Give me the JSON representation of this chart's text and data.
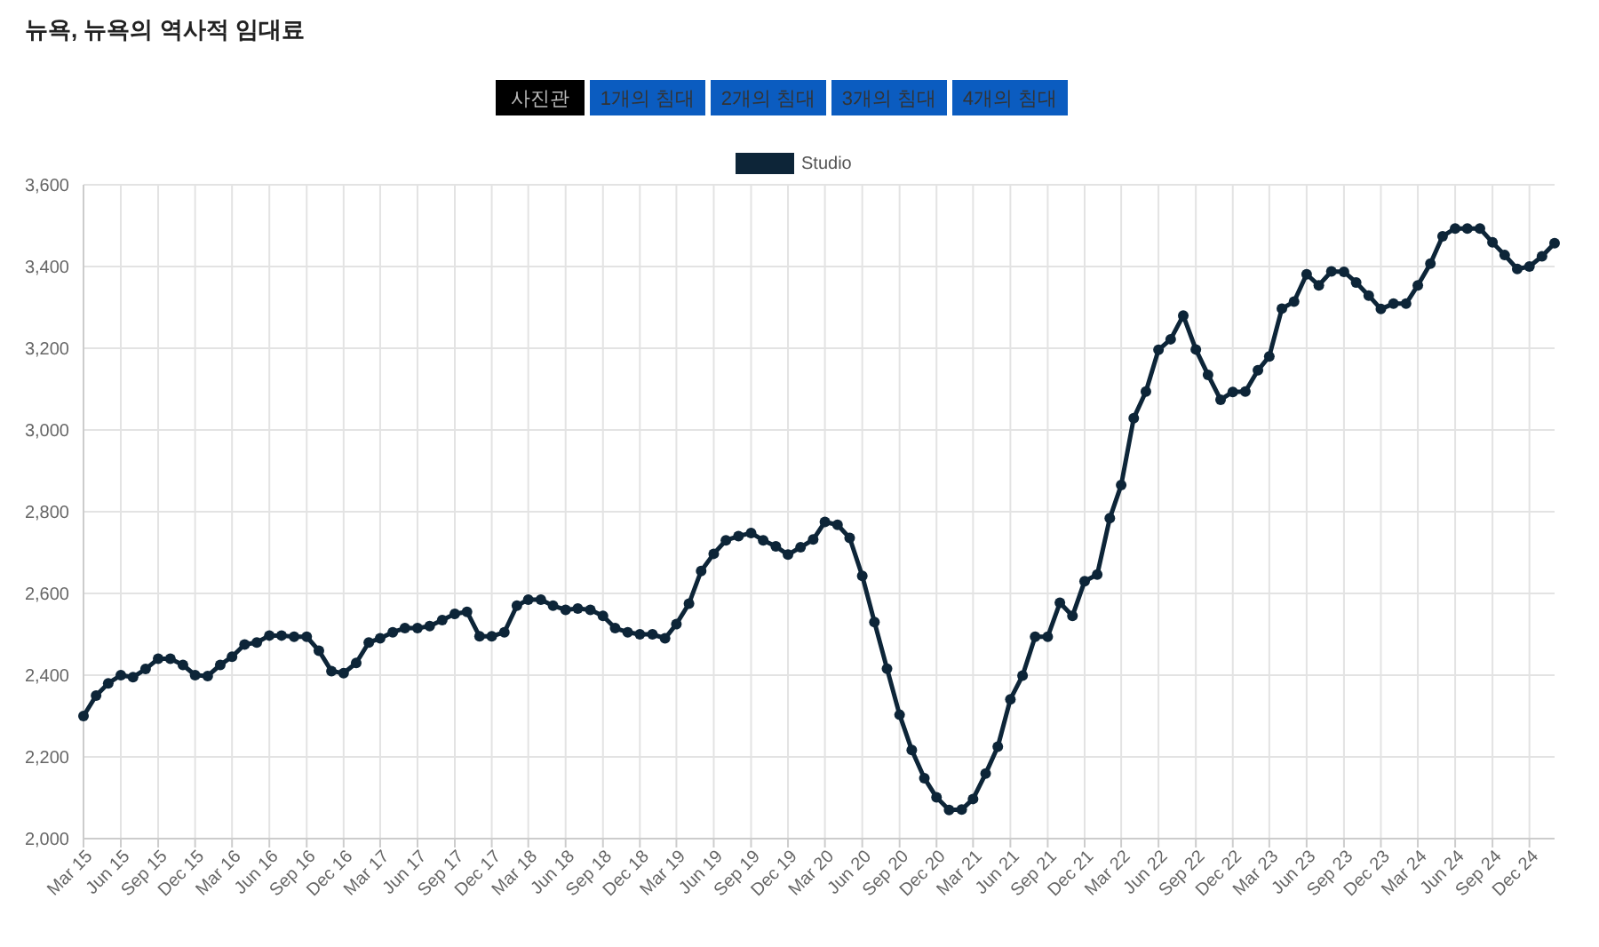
{
  "chart_data": {
    "type": "line",
    "title": "뉴욕, 뉴욕의 역사적 임대료",
    "annotations": [
      "사진관",
      "1개의 침대",
      "2개의 침대",
      "3개의 침대",
      "4개의 침대"
    ],
    "x": [
      "2015-03",
      "2015-04",
      "2015-05",
      "2015-06",
      "2015-07",
      "2015-08",
      "2015-09",
      "2015-10",
      "2015-11",
      "2015-12",
      "2016-01",
      "2016-02",
      "2016-03",
      "2016-04",
      "2016-05",
      "2016-06",
      "2016-07",
      "2016-08",
      "2016-09",
      "2016-10",
      "2016-11",
      "2016-12",
      "2017-01",
      "2017-02",
      "2017-03",
      "2017-04",
      "2017-05",
      "2017-06",
      "2017-07",
      "2017-08",
      "2017-09",
      "2017-10",
      "2017-11",
      "2017-12",
      "2018-01",
      "2018-02",
      "2018-03",
      "2018-04",
      "2018-05",
      "2018-06",
      "2018-07",
      "2018-08",
      "2018-09",
      "2018-10",
      "2018-11",
      "2018-12",
      "2019-01",
      "2019-02",
      "2019-03",
      "2019-04",
      "2019-05",
      "2019-06",
      "2019-07",
      "2019-08",
      "2019-09",
      "2019-10",
      "2019-11",
      "2019-12",
      "2020-01",
      "2020-02",
      "2020-03",
      "2020-04",
      "2020-05",
      "2020-06",
      "2020-07",
      "2020-08",
      "2020-09",
      "2020-10",
      "2020-11",
      "2020-12",
      "2021-01",
      "2021-02",
      "2021-03",
      "2021-04",
      "2021-05",
      "2021-06",
      "2021-07",
      "2021-08",
      "2021-09",
      "2021-10",
      "2021-11",
      "2021-12",
      "2022-01",
      "2022-02",
      "2022-03",
      "2022-04",
      "2022-05",
      "2022-06",
      "2022-07",
      "2022-08",
      "2022-09",
      "2022-10",
      "2022-11",
      "2022-12",
      "2023-01",
      "2023-02",
      "2023-03",
      "2023-04",
      "2023-05",
      "2023-06",
      "2023-07",
      "2023-08",
      "2023-09",
      "2023-10",
      "2023-11",
      "2023-12",
      "2024-01",
      "2024-02",
      "2024-03",
      "2024-04",
      "2024-05",
      "2024-06",
      "2024-07",
      "2024-08",
      "2024-09",
      "2024-10",
      "2024-11",
      "2024-12",
      "2025-01",
      "2025-02"
    ],
    "series": [
      {
        "name": "Studio",
        "color": "#0d2538",
        "values": [
          2300,
          2350,
          2380,
          2400,
          2395,
          2415,
          2440,
          2440,
          2425,
          2400,
          2398,
          2425,
          2445,
          2475,
          2480,
          2497,
          2497,
          2494,
          2494,
          2460,
          2410,
          2405,
          2430,
          2480,
          2490,
          2505,
          2515,
          2515,
          2520,
          2535,
          2550,
          2555,
          2495,
          2495,
          2505,
          2570,
          2585,
          2585,
          2570,
          2560,
          2563,
          2560,
          2545,
          2515,
          2505,
          2500,
          2500,
          2490,
          2525,
          2575,
          2655,
          2697,
          2730,
          2740,
          2748,
          2730,
          2715,
          2695,
          2713,
          2732,
          2775,
          2768,
          2736,
          2643,
          2530,
          2416,
          2303,
          2217,
          2148,
          2101,
          2070,
          2071,
          2097,
          2159,
          2225,
          2341,
          2399,
          2494,
          2494,
          2577,
          2545,
          2630,
          2646,
          2784,
          2865,
          3029,
          3094,
          3196,
          3222,
          3280,
          3197,
          3135,
          3074,
          3093,
          3094,
          3146,
          3180,
          3297,
          3314,
          3381,
          3354,
          3388,
          3387,
          3361,
          3329,
          3296,
          3309,
          3309,
          3354,
          3407,
          3474,
          3493,
          3493,
          3493,
          3459,
          3428,
          3394,
          3400,
          3425,
          3457
        ]
      }
    ],
    "xlim": [
      "2015-03",
      "2025-02"
    ],
    "xticks": [
      {
        "value": "2015-03",
        "label": "Mar 15"
      },
      {
        "value": "2015-06",
        "label": "Jun 15"
      },
      {
        "value": "2015-09",
        "label": "Sep 15"
      },
      {
        "value": "2015-12",
        "label": "Dec 15"
      },
      {
        "value": "2016-03",
        "label": "Mar 16"
      },
      {
        "value": "2016-06",
        "label": "Jun 16"
      },
      {
        "value": "2016-09",
        "label": "Sep 16"
      },
      {
        "value": "2016-12",
        "label": "Dec 16"
      },
      {
        "value": "2017-03",
        "label": "Mar 17"
      },
      {
        "value": "2017-06",
        "label": "Jun 17"
      },
      {
        "value": "2017-09",
        "label": "Sep 17"
      },
      {
        "value": "2017-12",
        "label": "Dec 17"
      },
      {
        "value": "2018-03",
        "label": "Mar 18"
      },
      {
        "value": "2018-06",
        "label": "Jun 18"
      },
      {
        "value": "2018-09",
        "label": "Sep 18"
      },
      {
        "value": "2018-12",
        "label": "Dec 18"
      },
      {
        "value": "2019-03",
        "label": "Mar 19"
      },
      {
        "value": "2019-06",
        "label": "Jun 19"
      },
      {
        "value": "2019-09",
        "label": "Sep 19"
      },
      {
        "value": "2019-12",
        "label": "Dec 19"
      },
      {
        "value": "2020-03",
        "label": "Mar 20"
      },
      {
        "value": "2020-06",
        "label": "Jun 20"
      },
      {
        "value": "2020-09",
        "label": "Sep 20"
      },
      {
        "value": "2020-12",
        "label": "Dec 20"
      },
      {
        "value": "2021-03",
        "label": "Mar 21"
      },
      {
        "value": "2021-06",
        "label": "Jun 21"
      },
      {
        "value": "2021-09",
        "label": "Sep 21"
      },
      {
        "value": "2021-12",
        "label": "Dec 21"
      },
      {
        "value": "2022-03",
        "label": "Mar 22"
      },
      {
        "value": "2022-06",
        "label": "Jun 22"
      },
      {
        "value": "2022-09",
        "label": "Sep 22"
      },
      {
        "value": "2022-12",
        "label": "Dec 22"
      },
      {
        "value": "2023-03",
        "label": "Mar 23"
      },
      {
        "value": "2023-06",
        "label": "Jun 23"
      },
      {
        "value": "2023-09",
        "label": "Sep 23"
      },
      {
        "value": "2023-12",
        "label": "Dec 23"
      },
      {
        "value": "2024-03",
        "label": "Mar 24"
      },
      {
        "value": "2024-06",
        "label": "Jun 24"
      },
      {
        "value": "2024-09",
        "label": "Sep 24"
      },
      {
        "value": "2024-12",
        "label": "Dec 24"
      }
    ],
    "ylim": [
      2000,
      3600
    ],
    "yticks": [
      {
        "value": 2000,
        "label": "2,000"
      },
      {
        "value": 2200,
        "label": "2,200"
      },
      {
        "value": 2400,
        "label": "2,400"
      },
      {
        "value": 2600,
        "label": "2,600"
      },
      {
        "value": 2800,
        "label": "2,800"
      },
      {
        "value": 3000,
        "label": "3,000"
      },
      {
        "value": 3200,
        "label": "3,200"
      },
      {
        "value": 3400,
        "label": "3,400"
      },
      {
        "value": 3600,
        "label": "3,600"
      }
    ],
    "grid": true,
    "legend": "top",
    "marker": "circle",
    "line_style": "solid"
  }
}
